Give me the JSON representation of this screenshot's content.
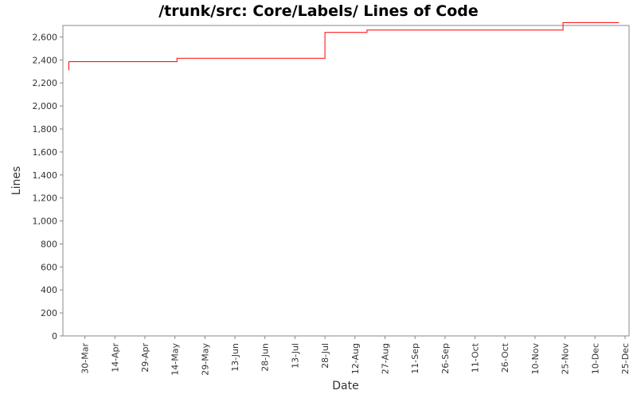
{
  "chart_data": {
    "type": "line",
    "title": "/trunk/src: Core/Labels/ Lines of Code",
    "xlabel": "Date",
    "ylabel": "Lines",
    "ylim": [
      0,
      2700
    ],
    "yticks": [
      0,
      200,
      400,
      600,
      800,
      1000,
      1200,
      1400,
      1600,
      1800,
      2000,
      2200,
      2400,
      2600
    ],
    "ytick_labels": [
      "0",
      "200",
      "400",
      "600",
      "800",
      "1,000",
      "1,200",
      "1,400",
      "1,600",
      "1,800",
      "2,000",
      "2,200",
      "2,400",
      "2,600"
    ],
    "xlim": [
      "2009-03-19",
      "2009-12-27"
    ],
    "xticks": [
      "2009-03-30",
      "2009-04-14",
      "2009-04-29",
      "2009-05-14",
      "2009-05-29",
      "2009-06-13",
      "2009-06-28",
      "2009-07-13",
      "2009-07-28",
      "2009-08-12",
      "2009-08-27",
      "2009-09-11",
      "2009-09-26",
      "2009-10-11",
      "2009-10-26",
      "2009-11-10",
      "2009-11-25",
      "2009-12-10",
      "2009-12-25"
    ],
    "xtick_labels": [
      "30-Mar",
      "14-Apr",
      "29-Apr",
      "14-May",
      "29-May",
      "13-Jun",
      "28-Jun",
      "13-Jul",
      "28-Jul",
      "12-Aug",
      "27-Aug",
      "11-Sep",
      "26-Sep",
      "11-Oct",
      "26-Oct",
      "10-Nov",
      "25-Nov",
      "10-Dec",
      "25-Dec"
    ],
    "grid": false,
    "legend": "none",
    "series": [
      {
        "color": "#ff0000",
        "step": true,
        "points": [
          {
            "x": "2009-03-22",
            "y": 2310
          },
          {
            "x": "2009-03-22",
            "y": 2385
          },
          {
            "x": "2009-05-15",
            "y": 2385
          },
          {
            "x": "2009-05-15",
            "y": 2415
          },
          {
            "x": "2009-07-28",
            "y": 2415
          },
          {
            "x": "2009-07-28",
            "y": 2640
          },
          {
            "x": "2009-08-18",
            "y": 2640
          },
          {
            "x": "2009-08-18",
            "y": 2660
          },
          {
            "x": "2009-11-24",
            "y": 2660
          },
          {
            "x": "2009-11-24",
            "y": 2725
          },
          {
            "x": "2009-12-22",
            "y": 2725
          }
        ]
      }
    ]
  }
}
